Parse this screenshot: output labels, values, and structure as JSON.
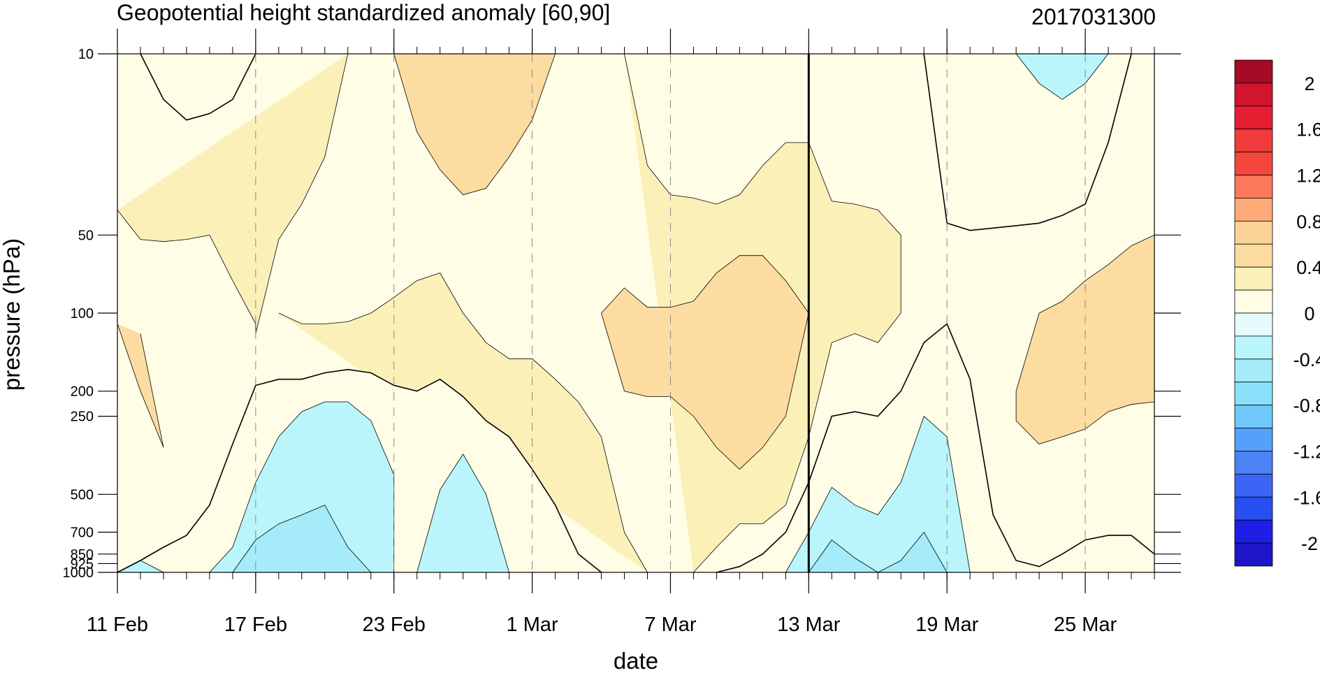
{
  "chart_data": {
    "type": "heatmap",
    "title": "Geopotential height standardized anomaly [60,90]",
    "subtitle": "2017031300",
    "xlabel": "date",
    "ylabel": "pressure (hPa)",
    "x_range": [
      "2017-02-11",
      "2017-03-28"
    ],
    "y_range": [
      1000,
      10
    ],
    "y_scale": "log",
    "x_ticks": [
      "11 Feb",
      "17 Feb",
      "23 Feb",
      "1 Mar",
      "7 Mar",
      "13 Mar",
      "19 Mar",
      "25 Mar"
    ],
    "x_tick_dates": [
      "2017-02-11",
      "2017-02-17",
      "2017-02-23",
      "2017-03-01",
      "2017-03-07",
      "2017-03-13",
      "2017-03-19",
      "2017-03-25"
    ],
    "y_ticks": [
      10,
      50,
      100,
      200,
      250,
      500,
      700,
      850,
      925,
      1000
    ],
    "y_tick_labels": [
      "10",
      "50",
      "100",
      "200",
      "250",
      "500",
      "700",
      "850",
      "925",
      "1000"
    ],
    "grid": "dashed vertical lines at x tick dates",
    "analysis_date": "2017-03-13",
    "colorbar": {
      "placement": "right",
      "levels": [
        -2.2,
        -2.0,
        -1.8,
        -1.6,
        -1.4,
        -1.2,
        -1.0,
        -0.8,
        -0.6,
        -0.4,
        -0.2,
        0.0,
        0.2,
        0.4,
        0.6,
        0.8,
        1.0,
        1.2,
        1.4,
        1.6,
        1.8,
        2.0,
        2.2
      ],
      "colors": [
        "#1e14c8",
        "#1e1ee6",
        "#2850f0",
        "#3c64f5",
        "#4b82f5",
        "#55a0fa",
        "#6ec8fa",
        "#8ce1fa",
        "#a5ebfa",
        "#b9f5fa",
        "#e6fcfc",
        "#fffde6",
        "#fcf0b9",
        "#fcdca0",
        "#fcd296",
        "#fcaa78",
        "#fc785a",
        "#f5463c",
        "#f03c3c",
        "#e61e32",
        "#d2142d",
        "#a50a26"
      ],
      "labels": [
        "2",
        "1.6",
        "1.2",
        "0.8",
        "0.4",
        "0",
        "-0.4",
        "-0.8",
        "-1.2",
        "-1.6",
        "-2"
      ],
      "label_values": [
        2.0,
        1.6,
        1.2,
        0.8,
        0.4,
        0.0,
        -0.4,
        -0.8,
        -1.2,
        -1.6,
        -2.0
      ]
    },
    "contours": [
      {
        "level": 0.2,
        "points": [
          [
            "02-11",
            40
          ],
          [
            "02-12",
            52
          ],
          [
            "02-13",
            53
          ],
          [
            "02-14",
            52
          ],
          [
            "02-15",
            50
          ],
          [
            "02-16",
            75
          ],
          [
            "02-17",
            110
          ],
          [
            "02-17",
            120
          ],
          [
            "02-18",
            52
          ],
          [
            "02-19",
            38
          ],
          [
            "02-20",
            25
          ],
          [
            "02-21",
            10
          ]
        ]
      },
      {
        "level": 0.2,
        "points": [
          [
            "02-18",
            100
          ],
          [
            "02-19",
            110
          ],
          [
            "02-20",
            110
          ],
          [
            "02-21",
            108
          ],
          [
            "02-22",
            100
          ],
          [
            "02-23",
            87
          ],
          [
            "02-24",
            75
          ],
          [
            "02-25",
            70
          ],
          [
            "02-26",
            100
          ],
          [
            "02-27",
            130
          ],
          [
            "02-28",
            150
          ],
          [
            "03-01",
            150
          ],
          [
            "03-02",
            180
          ],
          [
            "03-03",
            220
          ],
          [
            "03-04",
            300
          ],
          [
            "03-05",
            700
          ],
          [
            "03-06",
            1000
          ]
        ]
      },
      {
        "level": 0.2,
        "points": [
          [
            "03-08",
            1000
          ],
          [
            "03-09",
            800
          ],
          [
            "03-10",
            650
          ],
          [
            "03-11",
            650
          ],
          [
            "03-12",
            550
          ],
          [
            "03-13",
            300
          ],
          [
            "03-14",
            130
          ],
          [
            "03-15",
            120
          ],
          [
            "03-16",
            130
          ],
          [
            "03-17",
            100
          ],
          [
            "03-17",
            50
          ],
          [
            "03-16",
            40
          ],
          [
            "03-15",
            38
          ],
          [
            "03-14",
            37
          ],
          [
            "03-13",
            22
          ],
          [
            "03-12",
            22
          ],
          [
            "03-11",
            27
          ],
          [
            "03-10",
            35
          ],
          [
            "03-09",
            38
          ],
          [
            "03-08",
            36
          ],
          [
            "03-07",
            35
          ],
          [
            "03-06",
            27
          ],
          [
            "03-05",
            10
          ]
        ]
      },
      {
        "level": 0.4,
        "points": [
          [
            "02-11",
            110
          ],
          [
            "02-12",
            200
          ],
          [
            "02-13",
            330
          ],
          [
            "02-12",
            120
          ]
        ]
      },
      {
        "level": 0.4,
        "points": [
          [
            "02-23",
            10
          ],
          [
            "02-24",
            20
          ],
          [
            "02-25",
            28
          ],
          [
            "02-26",
            35
          ],
          [
            "02-27",
            33
          ],
          [
            "02-28",
            25
          ],
          [
            "03-01",
            18
          ],
          [
            "03-02",
            10
          ]
        ]
      },
      {
        "level": 0.4,
        "points": [
          [
            "03-04",
            100
          ],
          [
            "03-05",
            80
          ],
          [
            "03-06",
            95
          ],
          [
            "03-07",
            95
          ],
          [
            "03-08",
            90
          ],
          [
            "03-09",
            70
          ],
          [
            "03-10",
            60
          ],
          [
            "03-11",
            60
          ],
          [
            "03-12",
            75
          ],
          [
            "03-13",
            100
          ],
          [
            "03-12",
            250
          ],
          [
            "03-11",
            330
          ],
          [
            "03-10",
            400
          ],
          [
            "03-09",
            330
          ],
          [
            "03-08",
            250
          ],
          [
            "03-07",
            210
          ],
          [
            "03-06",
            210
          ],
          [
            "03-05",
            200
          ],
          [
            "03-04",
            100
          ]
        ]
      },
      {
        "level": 0.4,
        "points": [
          [
            "03-23",
            100
          ],
          [
            "03-24",
            90
          ],
          [
            "03-25",
            75
          ],
          [
            "03-26",
            65
          ],
          [
            "03-27",
            55
          ],
          [
            "03-28",
            50
          ],
          [
            "03-28",
            220
          ],
          [
            "03-27",
            225
          ],
          [
            "03-26",
            240
          ],
          [
            "03-25",
            280
          ],
          [
            "03-24",
            300
          ],
          [
            "03-23",
            320
          ],
          [
            "03-22",
            260
          ],
          [
            "03-22",
            200
          ],
          [
            "03-23",
            100
          ]
        ]
      },
      {
        "level": 0.0,
        "points": [
          [
            "02-11",
            1000
          ],
          [
            "02-12",
            900
          ],
          [
            "02-13",
            800
          ],
          [
            "02-14",
            720
          ],
          [
            "02-15",
            550
          ],
          [
            "02-16",
            320
          ],
          [
            "02-17",
            190
          ],
          [
            "02-18",
            180
          ],
          [
            "02-19",
            180
          ],
          [
            "02-20",
            170
          ],
          [
            "02-21",
            165
          ],
          [
            "02-22",
            170
          ],
          [
            "02-23",
            190
          ],
          [
            "02-24",
            200
          ],
          [
            "02-25",
            180
          ],
          [
            "02-26",
            210
          ],
          [
            "02-27",
            260
          ],
          [
            "02-28",
            300
          ],
          [
            "03-01",
            400
          ],
          [
            "03-02",
            550
          ],
          [
            "03-03",
            850
          ],
          [
            "03-04",
            1000
          ]
        ]
      },
      {
        "level": 0.0,
        "points": [
          [
            "03-09",
            1000
          ],
          [
            "03-10",
            950
          ],
          [
            "03-11",
            850
          ],
          [
            "03-12",
            700
          ],
          [
            "03-13",
            450
          ],
          [
            "03-14",
            250
          ],
          [
            "03-15",
            240
          ],
          [
            "03-16",
            250
          ],
          [
            "03-17",
            200
          ],
          [
            "03-18",
            130
          ],
          [
            "03-19",
            110
          ],
          [
            "03-20",
            180
          ],
          [
            "03-21",
            600
          ],
          [
            "03-22",
            900
          ],
          [
            "03-23",
            950
          ],
          [
            "03-24",
            850
          ],
          [
            "03-25",
            750
          ],
          [
            "03-26",
            720
          ],
          [
            "03-27",
            720
          ],
          [
            "03-28",
            850
          ]
        ]
      },
      {
        "level": 0.0,
        "points": [
          [
            "03-18",
            10
          ],
          [
            "03-19",
            45
          ],
          [
            "03-20",
            48
          ],
          [
            "03-21",
            47
          ],
          [
            "03-22",
            46
          ],
          [
            "03-23",
            45
          ],
          [
            "03-24",
            42
          ],
          [
            "03-25",
            38
          ],
          [
            "03-26",
            22
          ],
          [
            "03-27",
            10
          ]
        ]
      },
      {
        "level": 0.0,
        "points": [
          [
            "02-12",
            10
          ],
          [
            "02-13",
            15
          ],
          [
            "02-14",
            18
          ],
          [
            "02-15",
            17
          ],
          [
            "02-16",
            15
          ],
          [
            "02-17",
            10
          ]
        ]
      },
      {
        "level": -0.2,
        "points": [
          [
            "02-11",
            1000
          ],
          [
            "02-12",
            900
          ],
          [
            "02-13",
            1000
          ]
        ]
      },
      {
        "level": -0.2,
        "points": [
          [
            "02-15",
            1000
          ],
          [
            "02-16",
            800
          ],
          [
            "02-17",
            450
          ],
          [
            "02-18",
            300
          ],
          [
            "02-19",
            240
          ],
          [
            "02-20",
            220
          ],
          [
            "02-21",
            220
          ],
          [
            "02-22",
            260
          ],
          [
            "02-23",
            420
          ],
          [
            "02-23",
            850
          ],
          [
            "02-23",
            1000
          ]
        ]
      },
      {
        "level": -0.2,
        "points": [
          [
            "02-24",
            1000
          ],
          [
            "02-25",
            480
          ],
          [
            "02-26",
            350
          ],
          [
            "02-27",
            500
          ],
          [
            "02-28",
            1000
          ]
        ]
      },
      {
        "level": -0.2,
        "points": [
          [
            "03-12",
            1000
          ],
          [
            "03-13",
            700
          ],
          [
            "03-14",
            470
          ],
          [
            "03-15",
            550
          ],
          [
            "03-16",
            600
          ],
          [
            "03-17",
            450
          ],
          [
            "03-18",
            250
          ],
          [
            "03-19",
            300
          ],
          [
            "03-20",
            1000
          ]
        ]
      },
      {
        "level": -0.2,
        "points": [
          [
            "03-22",
            10
          ],
          [
            "03-23",
            13
          ],
          [
            "03-24",
            15
          ],
          [
            "03-25",
            13
          ],
          [
            "03-26",
            10
          ]
        ]
      },
      {
        "level": -0.4,
        "points": [
          [
            "02-16",
            1000
          ],
          [
            "02-17",
            750
          ],
          [
            "02-18",
            650
          ],
          [
            "02-19",
            600
          ],
          [
            "02-20",
            550
          ],
          [
            "02-21",
            800
          ],
          [
            "02-22",
            1000
          ]
        ]
      },
      {
        "level": -0.4,
        "points": [
          [
            "03-13",
            1000
          ],
          [
            "03-14",
            750
          ],
          [
            "03-15",
            880
          ],
          [
            "03-16",
            1000
          ],
          [
            "03-17",
            900
          ],
          [
            "03-18",
            700
          ],
          [
            "03-19",
            1000
          ]
        ]
      }
    ]
  }
}
